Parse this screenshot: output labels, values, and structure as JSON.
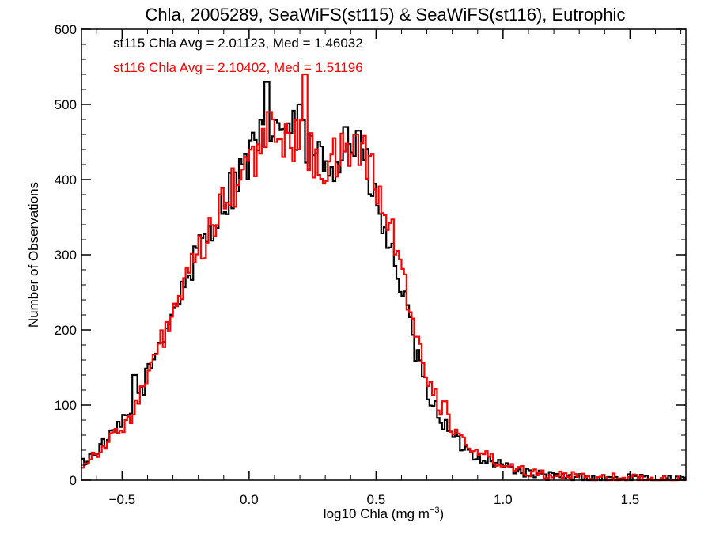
{
  "chart_data": {
    "type": "histogram",
    "title": "Chla, 2005289, SeaWiFS(st115) & SeaWiFS(st116), Eutrophic",
    "xlabel_main": "log10 Chla (mg m",
    "xlabel_exp": "−3",
    "xlabel_close": ")",
    "ylabel": "Number of Observations",
    "xlim": [
      -0.66,
      1.72
    ],
    "ylim": [
      0,
      600
    ],
    "x_ticks": [
      -0.5,
      0.0,
      0.5,
      1.0,
      1.5
    ],
    "x_tick_labels": [
      "−0.5",
      "0.0",
      "0.5",
      "1.0",
      "1.5"
    ],
    "y_ticks": [
      0,
      100,
      200,
      300,
      400,
      500,
      600
    ],
    "y_tick_labels": [
      "0",
      "100",
      "200",
      "300",
      "400",
      "500",
      "600"
    ],
    "bin_width": 0.01,
    "series": [
      {
        "name": "st115",
        "color": "#000000",
        "annotation": "st115 Chla Avg = 2.01123, Med = 1.46032",
        "curve": [
          [
            -0.66,
            22
          ],
          [
            -0.55,
            55
          ],
          [
            -0.45,
            95
          ],
          [
            -0.35,
            185
          ],
          [
            -0.25,
            265
          ],
          [
            -0.15,
            340
          ],
          [
            -0.05,
            400
          ],
          [
            0.02,
            440
          ],
          [
            0.1,
            475
          ],
          [
            0.2,
            455
          ],
          [
            0.3,
            420
          ],
          [
            0.4,
            445
          ],
          [
            0.45,
            430
          ],
          [
            0.5,
            365
          ],
          [
            0.55,
            310
          ],
          [
            0.6,
            260
          ],
          [
            0.65,
            175
          ],
          [
            0.7,
            120
          ],
          [
            0.75,
            85
          ],
          [
            0.8,
            58
          ],
          [
            0.85,
            42
          ],
          [
            0.9,
            32
          ],
          [
            0.95,
            26
          ],
          [
            1.0,
            20
          ],
          [
            1.05,
            14
          ],
          [
            1.1,
            9
          ],
          [
            1.2,
            5
          ],
          [
            1.3,
            3
          ],
          [
            1.45,
            2
          ],
          [
            1.72,
            1
          ]
        ],
        "peaks": [
          [
            0.07,
            530
          ],
          [
            0.2,
            500
          ],
          [
            0.38,
            470
          ],
          [
            0.43,
            465
          ],
          [
            -0.45,
            140
          ],
          [
            -0.62,
            35
          ]
        ]
      },
      {
        "name": "st116",
        "color": "#ff0000",
        "annotation": "st116 Chla Avg = 2.10402, Med = 1.51196",
        "curve": [
          [
            -0.66,
            20
          ],
          [
            -0.55,
            52
          ],
          [
            -0.45,
            92
          ],
          [
            -0.35,
            180
          ],
          [
            -0.25,
            260
          ],
          [
            -0.15,
            335
          ],
          [
            -0.05,
            395
          ],
          [
            0.02,
            430
          ],
          [
            0.1,
            462
          ],
          [
            0.2,
            450
          ],
          [
            0.3,
            415
          ],
          [
            0.4,
            440
          ],
          [
            0.45,
            440
          ],
          [
            0.5,
            390
          ],
          [
            0.55,
            340
          ],
          [
            0.6,
            290
          ],
          [
            0.65,
            200
          ],
          [
            0.7,
            140
          ],
          [
            0.75,
            100
          ],
          [
            0.8,
            70
          ],
          [
            0.85,
            50
          ],
          [
            0.9,
            38
          ],
          [
            0.95,
            30
          ],
          [
            1.0,
            23
          ],
          [
            1.05,
            17
          ],
          [
            1.1,
            12
          ],
          [
            1.2,
            7
          ],
          [
            1.3,
            4
          ],
          [
            1.45,
            3
          ],
          [
            1.72,
            1
          ]
        ],
        "peaks": [
          [
            0.22,
            540
          ],
          [
            0.42,
            460
          ],
          [
            0.08,
            490
          ],
          [
            -0.42,
            125
          ],
          [
            0.77,
            105
          ]
        ]
      }
    ]
  }
}
